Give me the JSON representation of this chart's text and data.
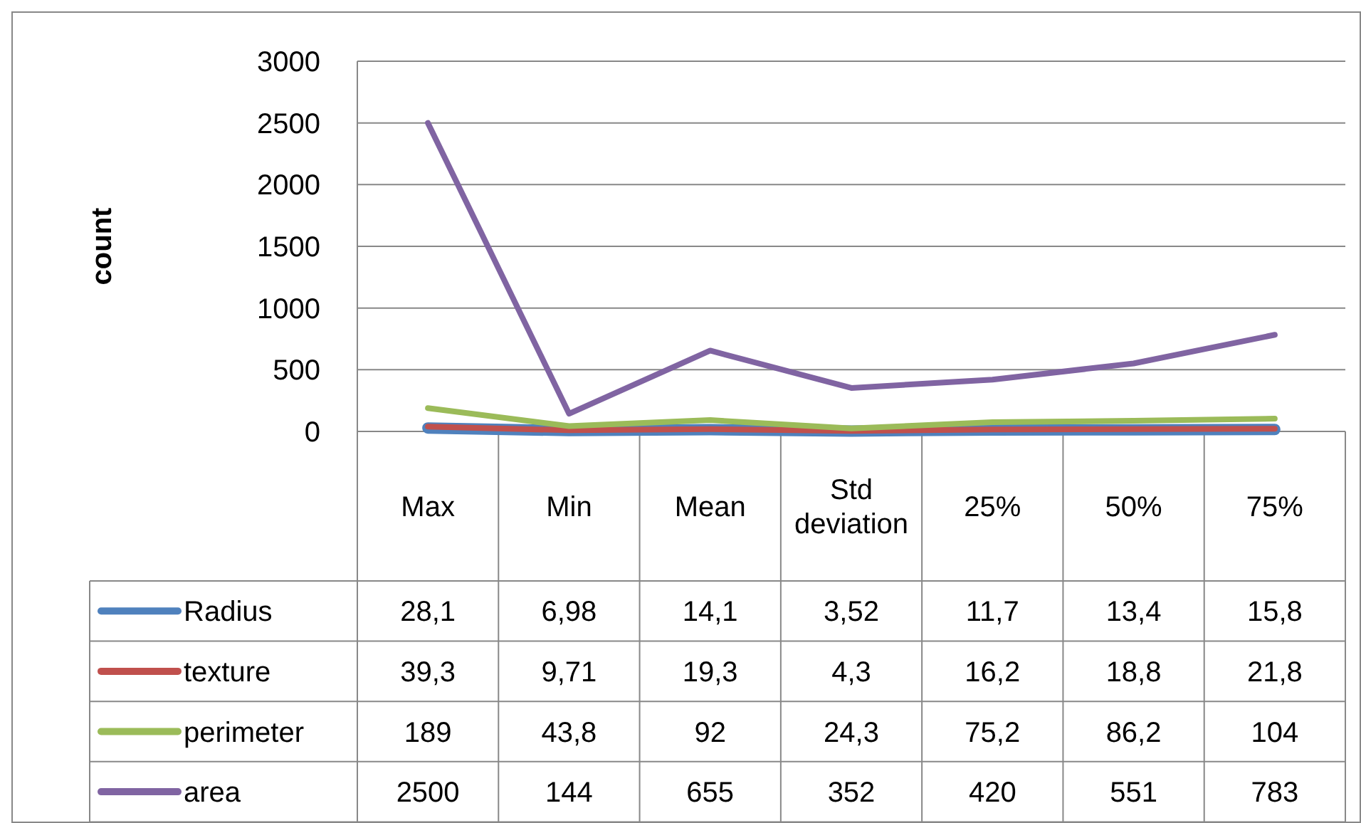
{
  "chart_data": {
    "type": "line",
    "ylabel": "count",
    "categories": [
      "Max",
      "Min",
      "Mean",
      "Std deviation",
      "25%",
      "50%",
      "75%"
    ],
    "ylim": [
      0,
      3000
    ],
    "yticks": [
      0,
      500,
      1000,
      1500,
      2000,
      2500,
      3000
    ],
    "grid": "y",
    "legend": "bottom",
    "marker": "none",
    "line_style": "solid",
    "series": [
      {
        "name": "Radius",
        "color": "#4f81bd",
        "values": [
          28.1,
          6.98,
          14.1,
          3.52,
          11.7,
          13.4,
          15.8
        ],
        "value_labels": [
          "28,1",
          "6,98",
          "14,1",
          "3,52",
          "11,7",
          "13,4",
          "15,8"
        ]
      },
      {
        "name": "texture",
        "color": "#c0504d",
        "values": [
          39.3,
          9.71,
          19.3,
          4.3,
          16.2,
          18.8,
          21.8
        ],
        "value_labels": [
          "39,3",
          "9,71",
          "19,3",
          "4,3",
          "16,2",
          "18,8",
          "21,8"
        ]
      },
      {
        "name": "perimeter",
        "color": "#9bbb59",
        "values": [
          189,
          43.8,
          92,
          24.3,
          75.2,
          86.2,
          104
        ],
        "value_labels": [
          "189",
          "43,8",
          "92",
          "24,3",
          "75,2",
          "86,2",
          "104"
        ]
      },
      {
        "name": "area",
        "color": "#8064a2",
        "values": [
          2500,
          144,
          655,
          352,
          420,
          551,
          783
        ],
        "value_labels": [
          "2500",
          "144",
          "655",
          "352",
          "420",
          "551",
          "783"
        ]
      }
    ]
  }
}
